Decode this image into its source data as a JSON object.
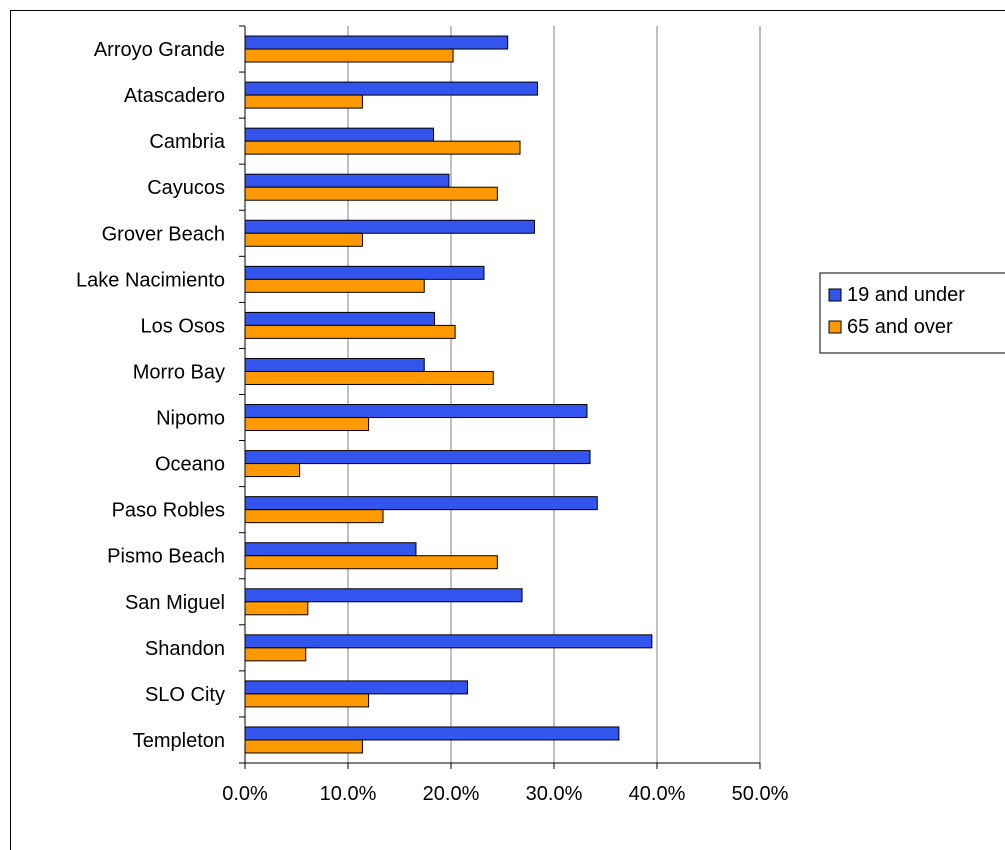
{
  "chart_data": {
    "type": "bar",
    "orientation": "horizontal",
    "categories": [
      "Arroyo Grande",
      "Atascadero",
      "Cambria",
      "Cayucos",
      "Grover Beach",
      "Lake Nacimiento",
      "Los Osos",
      "Morro Bay",
      "Nipomo",
      "Oceano",
      "Paso Robles",
      "Pismo Beach",
      "San Miguel",
      "Shandon",
      "SLO City",
      "Templeton"
    ],
    "series": [
      {
        "name": "19 and under",
        "color": "#3355ee",
        "values": [
          25.5,
          28.4,
          18.3,
          19.8,
          28.1,
          23.2,
          18.4,
          17.4,
          33.2,
          33.5,
          34.2,
          16.6,
          26.9,
          39.5,
          21.6,
          36.3
        ]
      },
      {
        "name": "65 and over",
        "color": "#ff9900",
        "values": [
          20.2,
          11.4,
          26.7,
          24.5,
          11.4,
          17.4,
          20.4,
          24.1,
          12.0,
          5.3,
          13.4,
          24.5,
          6.1,
          5.9,
          12.0,
          11.4
        ]
      }
    ],
    "xlim": [
      0,
      50
    ],
    "xticks": [
      "0.0%",
      "10.0%",
      "20.0%",
      "30.0%",
      "40.0%",
      "50.0%"
    ],
    "grid": "vertical",
    "legend": "right"
  }
}
